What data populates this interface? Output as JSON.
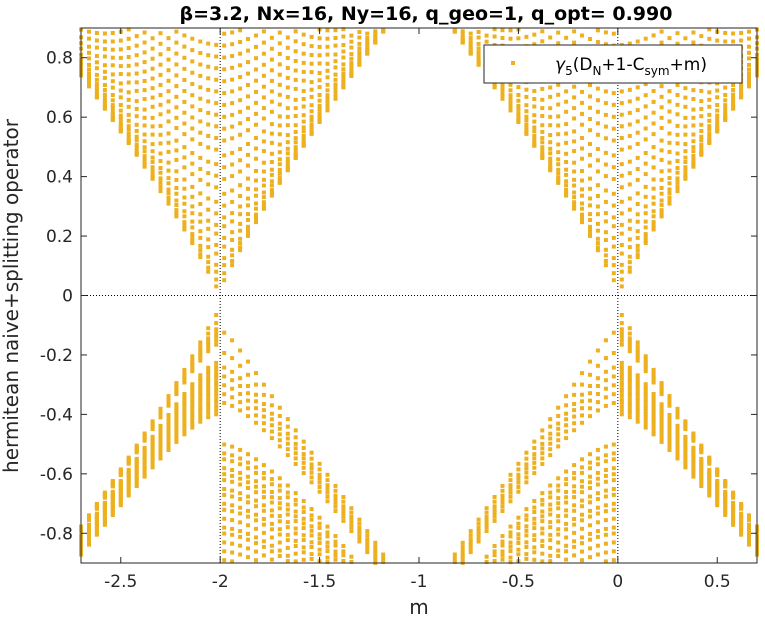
{
  "chart_data": {
    "type": "scatter",
    "title": "β=3.2, Nx=16, Ny=16, q_geo=1, q_opt= 0.990",
    "xlabel": "m",
    "ylabel": "hermitean naive+splitting operator",
    "xlim": [
      -2.7,
      0.7
    ],
    "ylim": [
      -0.9,
      0.9
    ],
    "xticks": [
      -2.5,
      -2,
      -1.5,
      -1,
      -0.5,
      0,
      0.5
    ],
    "xtick_labels": [
      "-2.5",
      "-2",
      "-1.5",
      "-1",
      "-0.5",
      "0",
      "0.5"
    ],
    "yticks": [
      -0.8,
      -0.6,
      -0.4,
      -0.2,
      0,
      0.2,
      0.4,
      0.6,
      0.8
    ],
    "ytick_labels": [
      "-0.8",
      "-0.6",
      "-0.4",
      "-0.2",
      "0",
      "0.2",
      "0.4",
      "0.6",
      "0.8"
    ],
    "reference_lines": {
      "x": [
        -2,
        0
      ],
      "y": [
        0
      ],
      "style": "dotted"
    },
    "legend": {
      "position": "top-right",
      "entry": "γ5(DN+1-Csym+m)"
    },
    "series": [
      {
        "name": "γ5(DN+1-Csym+m)",
        "color": "#EDB120",
        "marker": "square",
        "x_step": 0.04,
        "upper_gaps": [
          0.035,
          0.065,
          0.095,
          0.12,
          0.16,
          0.19,
          0.23,
          0.26,
          0.3,
          0.34,
          0.39,
          0.43,
          0.47,
          0.52,
          0.56,
          0.6,
          0.64,
          0.68,
          0.72,
          0.76,
          0.8,
          0.84,
          0.88
        ],
        "lower_gaps": [
          0.12,
          0.19,
          0.24,
          0.27,
          0.3,
          0.33,
          0.36,
          0.5,
          0.53,
          0.55,
          0.58,
          0.6,
          0.62,
          0.65,
          0.67,
          0.7,
          0.72,
          0.75,
          0.78,
          0.8,
          0.83,
          0.86,
          0.89
        ]
      }
    ],
    "grid": false
  }
}
